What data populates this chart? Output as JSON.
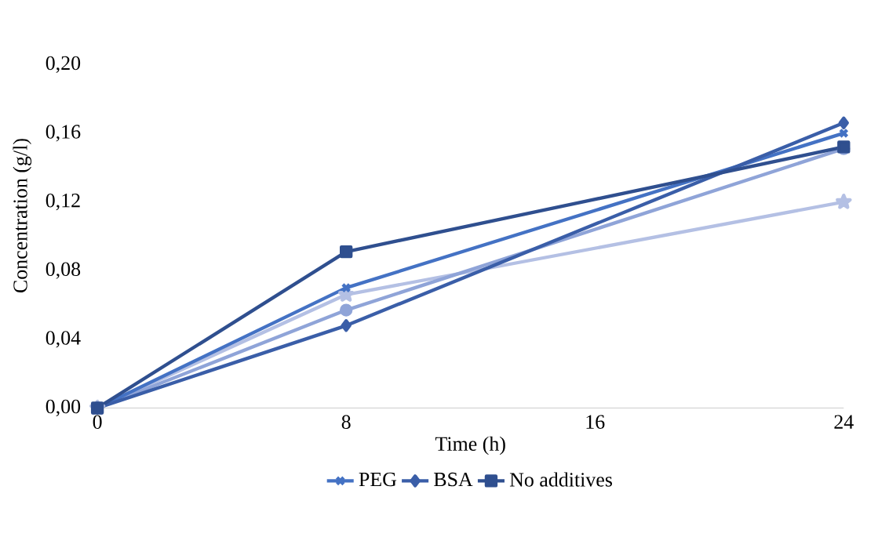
{
  "chart_data": {
    "type": "line",
    "xlabel": "Time (h)",
    "ylabel": "Concentration (g/l)",
    "x": [
      0,
      8,
      24
    ],
    "series": [
      {
        "color": "#b4c0e4",
        "marker": "star",
        "values": [
          0,
          0.066,
          0.12
        ]
      },
      {
        "color": "#8fa4d8",
        "marker": "circle",
        "values": [
          0,
          0.057,
          0.151
        ]
      },
      {
        "name": "PEG",
        "color": "#4472c4",
        "marker": "cross",
        "values": [
          0,
          0.07,
          0.16
        ]
      },
      {
        "name": "BSA",
        "color": "#3a5ea8",
        "marker": "diamond",
        "values": [
          0,
          0.048,
          0.166
        ]
      },
      {
        "name": "No additives",
        "color": "#2f4f8f",
        "marker": "square",
        "values": [
          0,
          0.091,
          0.152
        ]
      }
    ],
    "xlim": [
      0,
      24
    ],
    "ylim": [
      0,
      0.2
    ],
    "xticks": [
      0,
      8,
      16,
      24
    ],
    "yticks": [
      {
        "value": 0,
        "label": "0,00"
      },
      {
        "value": 0.04,
        "label": "0,04"
      },
      {
        "value": 0.08,
        "label": "0,08"
      },
      {
        "value": 0.12,
        "label": "0,12"
      },
      {
        "value": 0.16,
        "label": "0,16"
      },
      {
        "value": 0.2,
        "label": "0,20"
      }
    ],
    "grid": false,
    "legend": "bottom",
    "line_style": "solid"
  }
}
